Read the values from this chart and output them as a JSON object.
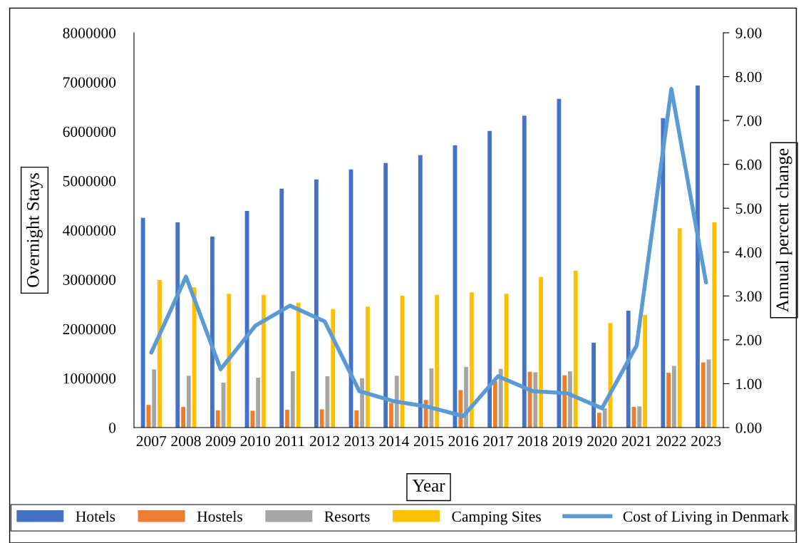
{
  "chart_data": {
    "type": "bar",
    "xlabel": "Year",
    "ylabel": "Overnight Stays",
    "y2label": "Annual percent change",
    "categories": [
      "2007",
      "2008",
      "2009",
      "2010",
      "2011",
      "2012",
      "2013",
      "2014",
      "2015",
      "2016",
      "2017",
      "2018",
      "2019",
      "2020",
      "2021",
      "2022",
      "2023"
    ],
    "series": [
      {
        "name": "Hotels",
        "color": "#4472c4",
        "values": [
          4250000,
          4160000,
          3870000,
          4390000,
          4840000,
          5030000,
          5230000,
          5360000,
          5520000,
          5720000,
          6010000,
          6320000,
          6660000,
          1720000,
          2370000,
          6270000,
          6930000
        ]
      },
      {
        "name": "Hostels",
        "color": "#ed7d31",
        "values": [
          460000,
          420000,
          350000,
          340000,
          360000,
          370000,
          350000,
          500000,
          560000,
          760000,
          940000,
          1130000,
          1060000,
          300000,
          420000,
          1110000,
          1320000
        ]
      },
      {
        "name": "Resorts",
        "color": "#a5a5a5",
        "values": [
          1180000,
          1050000,
          910000,
          1010000,
          1140000,
          1040000,
          1000000,
          1050000,
          1200000,
          1230000,
          1190000,
          1120000,
          1140000,
          390000,
          430000,
          1250000,
          1380000
        ]
      },
      {
        "name": "Camping Sites",
        "color": "#ffc000",
        "values": [
          2990000,
          2840000,
          2710000,
          2690000,
          2530000,
          2400000,
          2450000,
          2670000,
          2690000,
          2740000,
          2710000,
          3050000,
          3180000,
          2120000,
          2280000,
          4040000,
          4160000
        ]
      },
      {
        "name": "Cost of Living in Denmark",
        "color": "#5b9bd5",
        "type": "line",
        "axis": "y2",
        "values": [
          1.71,
          3.44,
          1.33,
          2.32,
          2.78,
          2.42,
          0.83,
          0.6,
          0.47,
          0.26,
          1.17,
          0.83,
          0.78,
          0.44,
          1.87,
          7.72,
          3.31
        ]
      }
    ],
    "ylim": [
      0,
      8000000
    ],
    "yticks": [
      0,
      1000000,
      2000000,
      3000000,
      4000000,
      5000000,
      6000000,
      7000000,
      8000000
    ],
    "y2lim": [
      0,
      9
    ],
    "y2ticks": [
      {
        "value": 0,
        "label": "0.00"
      },
      {
        "value": 1,
        "label": "1.00"
      },
      {
        "value": 2,
        "label": "2.00"
      },
      {
        "value": 3,
        "label": "3.00"
      },
      {
        "value": 4,
        "label": "4.00"
      },
      {
        "value": 5,
        "label": "5.00"
      },
      {
        "value": 6,
        "label": "6.00"
      },
      {
        "value": 7,
        "label": "7.00"
      },
      {
        "value": 8,
        "label": "8.00"
      },
      {
        "value": 9,
        "label": "9.00"
      }
    ],
    "grid": false,
    "legend": "bottom"
  }
}
